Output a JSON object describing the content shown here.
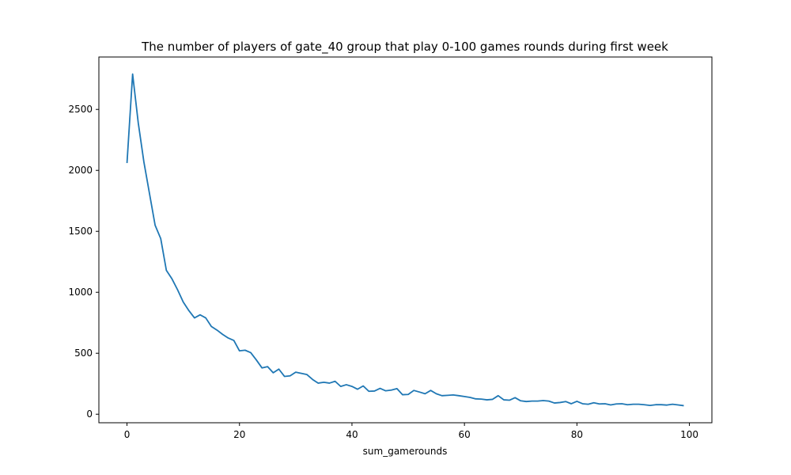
{
  "chart_data": {
    "type": "line",
    "title": "The number of players of gate_40 group that play 0-100 games rounds during first week",
    "xlabel": "sum_gamerounds",
    "ylabel": "",
    "xlim": [
      -5,
      104
    ],
    "ylim": [
      -70,
      2930
    ],
    "x_ticks": [
      0,
      20,
      40,
      60,
      80,
      100
    ],
    "y_ticks": [
      0,
      500,
      1000,
      1500,
      2000,
      2500
    ],
    "grid": false,
    "line_color": "#1f77b4",
    "series": [
      {
        "x": [
          0,
          1,
          2,
          3,
          4,
          5,
          6,
          7,
          8,
          9,
          10,
          11,
          12,
          13,
          14,
          15,
          16,
          17,
          18,
          19,
          20,
          21,
          22,
          23,
          24,
          25,
          26,
          27,
          28,
          29,
          30,
          31,
          32,
          33,
          34,
          35,
          36,
          37,
          38,
          39,
          40,
          41,
          42,
          43,
          44,
          45,
          46,
          47,
          48,
          49,
          50,
          51,
          52,
          53,
          54,
          55,
          56,
          57,
          58,
          59,
          60,
          61,
          62,
          63,
          64,
          65,
          66,
          67,
          68,
          69,
          70,
          71,
          72,
          73,
          74,
          75,
          76,
          77,
          78,
          79,
          80,
          81,
          82,
          83,
          84,
          85,
          86,
          87,
          88,
          89,
          90,
          91,
          92,
          93,
          94,
          95,
          96,
          97,
          98,
          99
        ],
        "values": [
          2060,
          2790,
          2390,
          2070,
          1810,
          1550,
          1440,
          1180,
          1110,
          1020,
          920,
          850,
          790,
          815,
          790,
          720,
          690,
          655,
          625,
          605,
          520,
          525,
          505,
          445,
          380,
          390,
          340,
          370,
          310,
          315,
          345,
          335,
          325,
          285,
          255,
          262,
          255,
          270,
          228,
          242,
          228,
          205,
          232,
          188,
          190,
          212,
          192,
          198,
          210,
          160,
          162,
          195,
          182,
          168,
          195,
          168,
          152,
          155,
          158,
          152,
          145,
          138,
          126,
          124,
          118,
          122,
          152,
          118,
          115,
          136,
          110,
          104,
          108,
          108,
          112,
          108,
          92,
          96,
          104,
          86,
          106,
          86,
          82,
          94,
          84,
          86,
          76,
          84,
          86,
          78,
          82,
          82,
          78,
          72,
          78,
          78,
          75,
          82,
          76,
          70
        ]
      }
    ]
  }
}
